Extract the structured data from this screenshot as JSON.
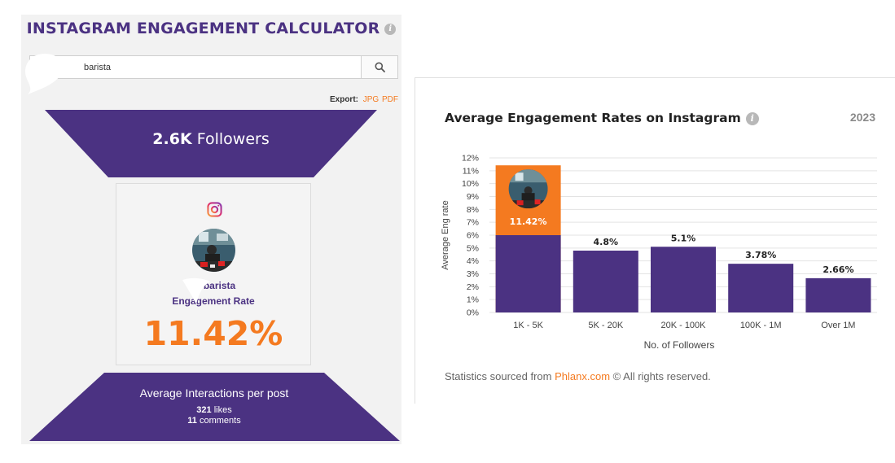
{
  "calculator": {
    "title": "INSTAGRAM ENGAGEMENT CALCULATOR",
    "info_icon": "i",
    "search_value": "barista",
    "export_label": "Export:",
    "export_jpg": "JPG",
    "export_pdf": "PDF",
    "followers_value": "2.6K",
    "followers_label": "Followers",
    "username": "@ barista",
    "rate_label": "Engagement Rate",
    "rate_value": "11.42%",
    "interactions_title": "Average Interactions per post",
    "likes_value": "321",
    "likes_label": "likes",
    "comments_value": "11",
    "comments_label": "comments"
  },
  "icons": {
    "search": "search-icon",
    "instagram": "instagram-icon",
    "info": "info-icon"
  },
  "colors": {
    "purple": "#4b3282",
    "orange": "#f47a20"
  },
  "stats": {
    "title": "Average Engagement Rates on Instagram",
    "year": "2023",
    "source_prefix": "Statistics sourced from",
    "source_link": "Phlanx.com",
    "source_suffix": "© All rights reserved."
  },
  "chart_data": {
    "type": "bar",
    "xlabel": "No. of Followers",
    "ylabel": "Average Eng rate",
    "ylim": [
      0,
      12
    ],
    "yticks": [
      "0%",
      "1%",
      "2%",
      "3%",
      "4%",
      "5%",
      "6%",
      "7%",
      "8%",
      "9%",
      "10%",
      "11%",
      "12%"
    ],
    "categories": [
      "1K - 5K",
      "5K - 20K",
      "20K - 100K",
      "100K - 1M",
      "Over 1M"
    ],
    "values": [
      6.0,
      4.8,
      5.1,
      3.78,
      2.66
    ],
    "labels": [
      "",
      "4.8%",
      "5.1%",
      "3.78%",
      "2.66%"
    ],
    "highlight": {
      "category_index": 0,
      "value": 11.42,
      "label": "11.42%",
      "color": "#f47a20"
    },
    "bar_color": "#4b3282",
    "grid": true
  }
}
